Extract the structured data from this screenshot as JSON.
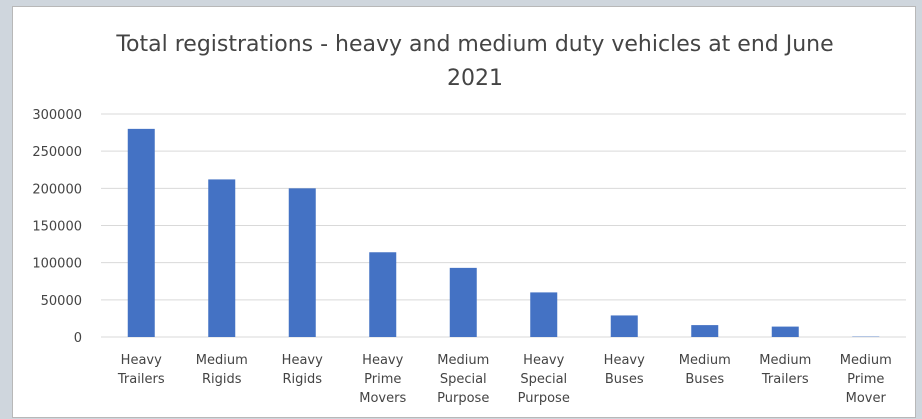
{
  "chart_data": {
    "type": "bar",
    "title_lines": [
      "Total registrations - heavy and medium duty vehicles at end June",
      "2021"
    ],
    "categories": [
      [
        "Heavy",
        "Trailers"
      ],
      [
        "Medium",
        "Rigids"
      ],
      [
        "Heavy",
        "Rigids"
      ],
      [
        "Heavy",
        "Prime",
        "Movers"
      ],
      [
        "Medium",
        "Special",
        "Purpose"
      ],
      [
        "Heavy",
        "Special",
        "Purpose"
      ],
      [
        "Heavy",
        "Buses"
      ],
      [
        "Medium",
        "Buses"
      ],
      [
        "Medium",
        "Trailers"
      ],
      [
        "Medium",
        "Prime",
        "Mover"
      ]
    ],
    "values": [
      280000,
      212000,
      200000,
      114000,
      93000,
      60000,
      29000,
      16000,
      14000,
      500
    ],
    "y_ticks": [
      "0",
      "50000",
      "100000",
      "150000",
      "200000",
      "250000",
      "300000"
    ],
    "ylim": [
      0,
      300000
    ],
    "xlabel": "",
    "ylabel": "",
    "grid": true,
    "legend": "none",
    "colors": {
      "bar": "#4472c4",
      "grid": "#d9d9d9",
      "text": "#444444",
      "background": "#cfd6dd"
    }
  }
}
